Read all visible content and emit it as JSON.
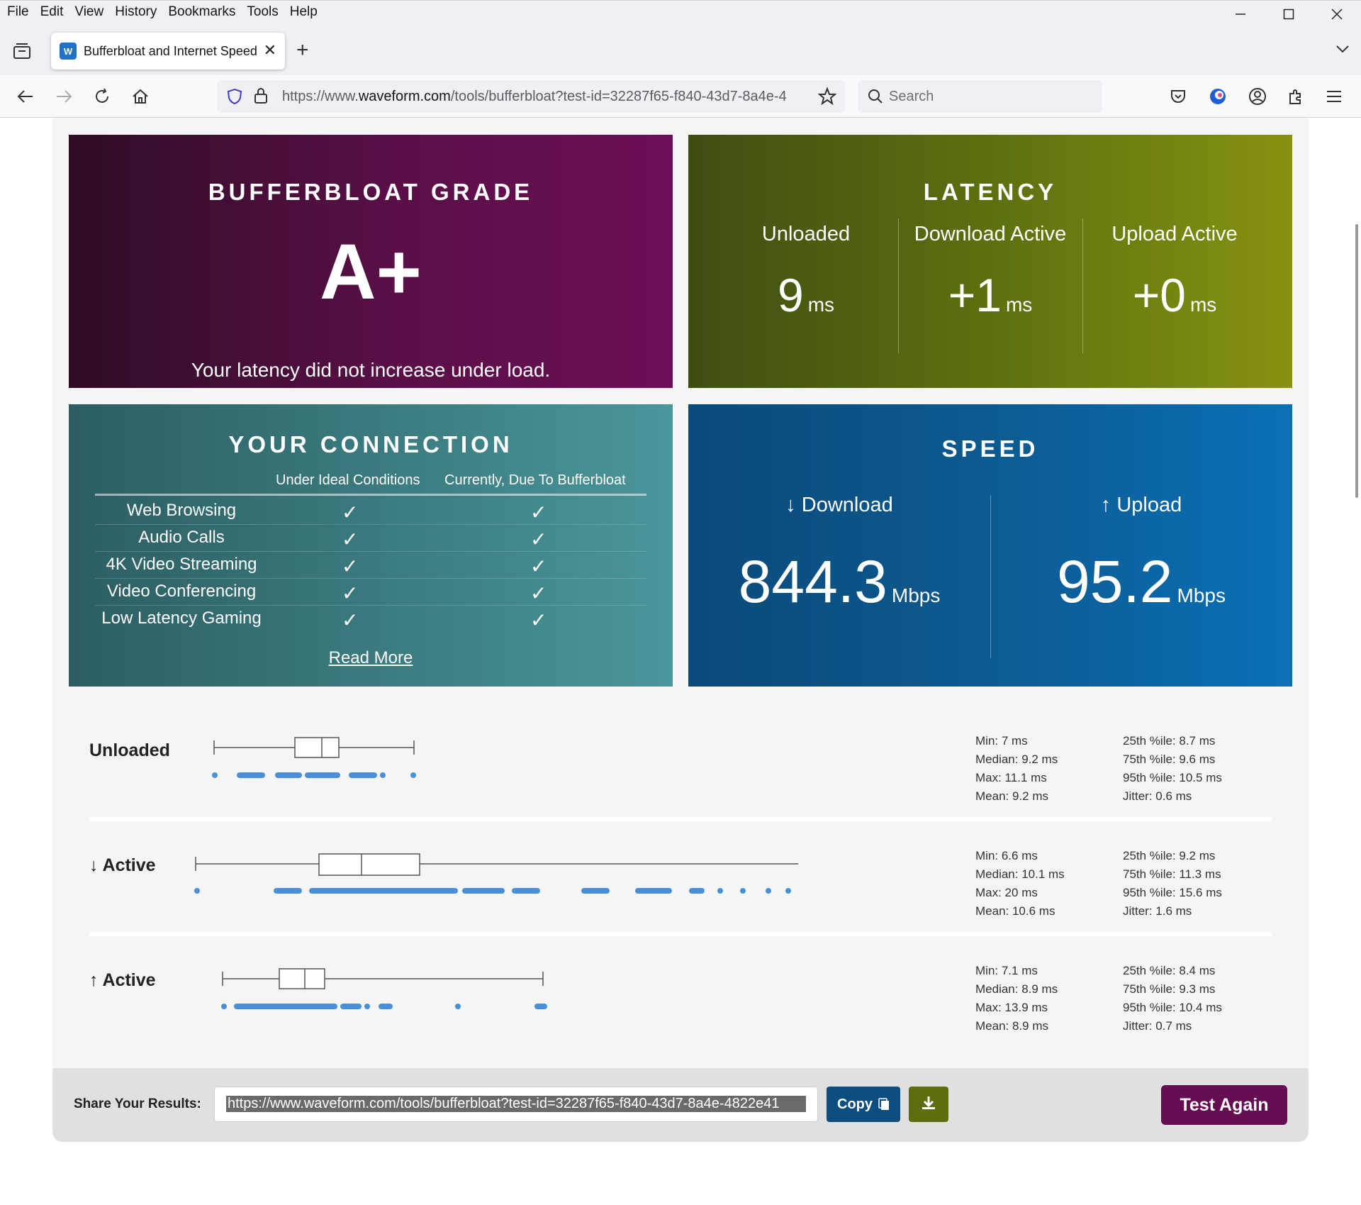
{
  "menu": [
    "File",
    "Edit",
    "View",
    "History",
    "Bookmarks",
    "Tools",
    "Help"
  ],
  "tab": {
    "title": "Bufferbloat and Internet Speed"
  },
  "url": {
    "prefix": "https://www.",
    "domain": "waveform.com",
    "path": "/tools/bufferbloat?test-id=32287f65-f840-43d7-8a4e-4"
  },
  "search": {
    "placeholder": "Search"
  },
  "grade": {
    "title": "BUFFERBLOAT GRADE",
    "value": "A+",
    "description": "Your latency did not increase under load."
  },
  "latency": {
    "title": "LATENCY",
    "columns": [
      {
        "label": "Unloaded",
        "value": "9",
        "unit": "ms"
      },
      {
        "label": "Download Active",
        "value": "+1",
        "unit": "ms"
      },
      {
        "label": "Upload Active",
        "value": "+0",
        "unit": "ms"
      }
    ]
  },
  "connection": {
    "title": "YOUR CONNECTION",
    "col_ideal": "Under Ideal Conditions",
    "col_current": "Currently, Due To Bufferbloat",
    "rows": [
      "Web Browsing",
      "Audio Calls",
      "4K Video Streaming",
      "Video Conferencing",
      "Low Latency Gaming"
    ],
    "check": "✓",
    "read_more": "Read More"
  },
  "speed": {
    "title": "SPEED",
    "download_label": "↓ Download",
    "download_value": "844.3",
    "upload_label": "↑ Upload",
    "upload_value": "95.2",
    "unit": "Mbps"
  },
  "stats": [
    {
      "label": "Unloaded",
      "min": "Min: 7 ms",
      "median": "Median: 9.2 ms",
      "max": "Max: 11.1 ms",
      "mean": "Mean: 9.2 ms",
      "p25": "25th %ile: 8.7 ms",
      "p75": "75th %ile: 9.6 ms",
      "p95": "95th %ile: 10.5 ms",
      "jitter": "Jitter: 0.6 ms"
    },
    {
      "label": "↓ Active",
      "min": "Min: 6.6 ms",
      "median": "Median: 10.1 ms",
      "max": "Max: 20 ms",
      "mean": "Mean: 10.6 ms",
      "p25": "25th %ile: 9.2 ms",
      "p75": "75th %ile: 11.3 ms",
      "p95": "95th %ile: 15.6 ms",
      "jitter": "Jitter: 1.6 ms"
    },
    {
      "label": "↑ Active",
      "min": "Min: 7.1 ms",
      "median": "Median: 8.9 ms",
      "max": "Max: 13.9 ms",
      "mean": "Mean: 8.9 ms",
      "p25": "25th %ile: 8.4 ms",
      "p75": "75th %ile: 9.3 ms",
      "p95": "95th %ile: 10.4 ms",
      "jitter": "Jitter: 0.7 ms"
    }
  ],
  "share": {
    "label": "Share Your Results:",
    "url": "https://www.waveform.com/tools/bufferbloat?test-id=32287f65-f840-43d7-8a4e-4822e41",
    "copy_label": "Copy",
    "test_again": "Test Again"
  },
  "colors": {
    "grade": "#6d0f57",
    "latency": "#869210",
    "connection": "#3a7a7e",
    "speed": "#0a70b6",
    "dot": "#4a90d9"
  }
}
